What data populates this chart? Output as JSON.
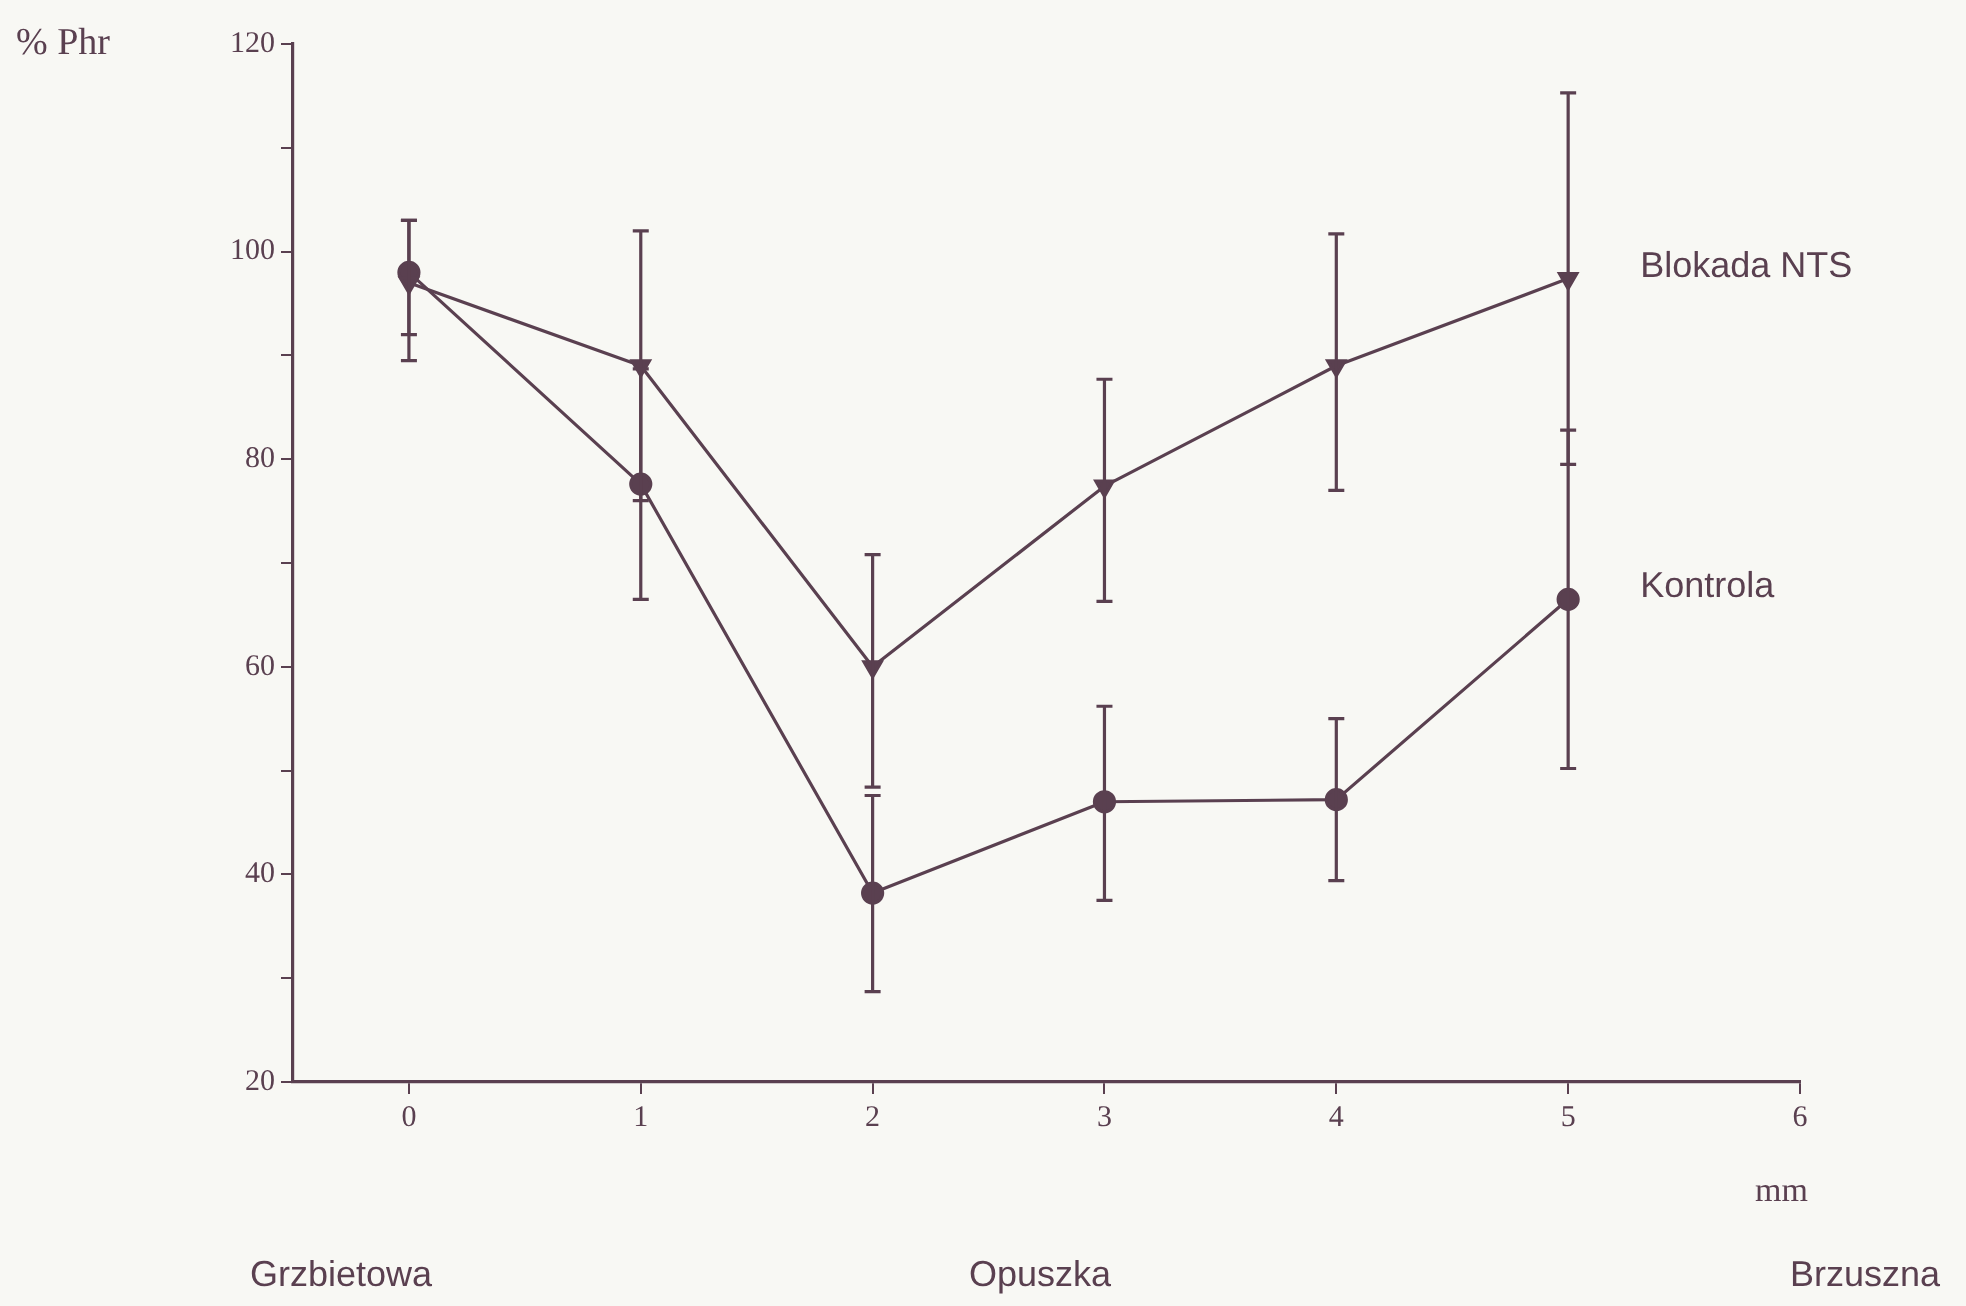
{
  "chart_data": {
    "type": "line",
    "xlabel": "mm",
    "ylabel": "% Phr",
    "x": [
      0,
      1,
      2,
      3,
      4,
      5
    ],
    "series": [
      {
        "name": "Blokada NTS",
        "color": "#5a4050",
        "marker": "triangle",
        "values": [
          97,
          89,
          60,
          77.4,
          89,
          97.4
        ],
        "errors": [
          [
            92,
            103
          ],
          [
            76,
            102
          ],
          [
            48.4,
            70.8
          ],
          [
            66.3,
            87.7
          ],
          [
            77,
            101.7
          ],
          [
            79.5,
            115.3
          ]
        ]
      },
      {
        "name": "Kontrola",
        "color": "#5a4050",
        "marker": "circle",
        "values": [
          98,
          77.6,
          38.2,
          47,
          47.2,
          66.5
        ],
        "errors": [
          [
            89.5,
            103
          ],
          [
            66.5,
            88.7
          ],
          [
            28.7,
            47.6
          ],
          [
            37.5,
            56.2
          ],
          [
            39.4,
            55
          ],
          [
            50.2,
            82.8
          ]
        ]
      }
    ],
    "xlim": [
      -0.5,
      6
    ],
    "xticks": [
      0,
      1,
      2,
      3,
      4,
      5,
      6
    ],
    "ylim": [
      20,
      120
    ],
    "yticks": [
      20,
      {
        "value": 30,
        "label": null
      },
      40,
      {
        "value": 50,
        "label": null
      },
      60,
      {
        "value": 70,
        "label": null
      },
      80,
      {
        "value": 90,
        "label": null
      },
      100,
      {
        "value": 110,
        "label": null
      },
      120
    ],
    "grid": false,
    "legend": false,
    "line_style": "solid",
    "annotations": [
      "Grzbietowa",
      "Opuszka",
      "Brzuszna"
    ]
  }
}
